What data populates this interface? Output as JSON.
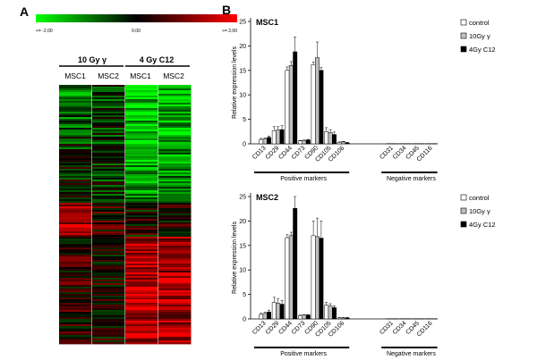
{
  "panel_a": {
    "label": "A",
    "colorbar": {
      "min_label": "<= -2.00",
      "mid_label": "0.00",
      "max_label": ">= 2.00",
      "low_color": "#00ff00",
      "mid_color": "#000000",
      "high_color": "#ff0000"
    },
    "groups": [
      {
        "label": "10 Gy γ",
        "columns": [
          "MSC1",
          "MSC2"
        ]
      },
      {
        "label": "4 Gy C12",
        "columns": [
          "MSC1",
          "MSC2"
        ]
      }
    ]
  },
  "panel_b": {
    "label": "B",
    "colors": {
      "control": "#ffffff",
      "gamma": "#c0c0c0",
      "c12": "#000000"
    },
    "positive_label": "Positive markers",
    "negative_label": "Negative markers"
  },
  "chart_data": [
    {
      "type": "bar",
      "title": "MSC1",
      "ylabel": "Relative expression levels",
      "ylim": [
        0,
        25
      ],
      "yticks": [
        0,
        5,
        10,
        15,
        20,
        25
      ],
      "categories": [
        "CD13",
        "CD29",
        "CD44",
        "CD73",
        "CD90",
        "CD105",
        "CD106",
        "CD31",
        "CD34",
        "CD45",
        "CD116"
      ],
      "series": [
        {
          "name": "control",
          "values": [
            0.9,
            2.7,
            15.0,
            0.6,
            16.2,
            2.5,
            0.3,
            0.05,
            0.05,
            0.05,
            0.05
          ],
          "errors": [
            0.2,
            0.8,
            0.7,
            0.1,
            0.5,
            0.8,
            0.1,
            0,
            0,
            0,
            0
          ]
        },
        {
          "name": "10Gy γ",
          "values": [
            1.0,
            2.8,
            16.0,
            0.7,
            17.6,
            2.3,
            0.4,
            0.05,
            0.05,
            0.05,
            0.05
          ],
          "errors": [
            0.2,
            0.7,
            0.8,
            0.1,
            3.2,
            0.6,
            0.1,
            0,
            0,
            0,
            0
          ]
        },
        {
          "name": "4Gy C12",
          "values": [
            1.3,
            2.9,
            18.8,
            0.8,
            15.0,
            1.9,
            0.2,
            0.05,
            0.05,
            0.05,
            0.05
          ],
          "errors": [
            0.3,
            0.8,
            3.0,
            0.1,
            0.6,
            0.5,
            0.1,
            0,
            0,
            0,
            0
          ]
        }
      ],
      "legend": "top-right"
    },
    {
      "type": "bar",
      "title": "MSC2",
      "ylabel": "Relative expression levels",
      "ylim": [
        0,
        25
      ],
      "yticks": [
        0,
        5,
        10,
        15,
        20,
        25
      ],
      "categories": [
        "CD13",
        "CD29",
        "CD44",
        "CD73",
        "CD90",
        "CD105",
        "CD106",
        "CD31",
        "CD34",
        "CD45",
        "CD116"
      ],
      "series": [
        {
          "name": "control",
          "values": [
            0.9,
            3.4,
            16.6,
            0.7,
            17.0,
            2.8,
            0.2,
            0.05,
            0.05,
            0.05,
            0.05
          ],
          "errors": [
            0.3,
            1.0,
            0.6,
            0.1,
            3.0,
            0.6,
            0.1,
            0,
            0,
            0,
            0
          ]
        },
        {
          "name": "10Gy γ",
          "values": [
            1.1,
            3.2,
            17.0,
            0.8,
            16.8,
            2.6,
            0.2,
            0.05,
            0.05,
            0.05,
            0.05
          ],
          "errors": [
            0.3,
            0.9,
            0.7,
            0.1,
            3.8,
            0.5,
            0.1,
            0,
            0,
            0,
            0
          ]
        },
        {
          "name": "4Gy C12",
          "values": [
            1.4,
            3.0,
            22.6,
            0.8,
            16.5,
            2.3,
            0.2,
            0.05,
            0.05,
            0.05,
            0.05
          ],
          "errors": [
            0.4,
            0.8,
            2.4,
            0.1,
            3.5,
            0.4,
            0.1,
            0,
            0,
            0,
            0
          ]
        }
      ],
      "legend": "top-right"
    }
  ]
}
